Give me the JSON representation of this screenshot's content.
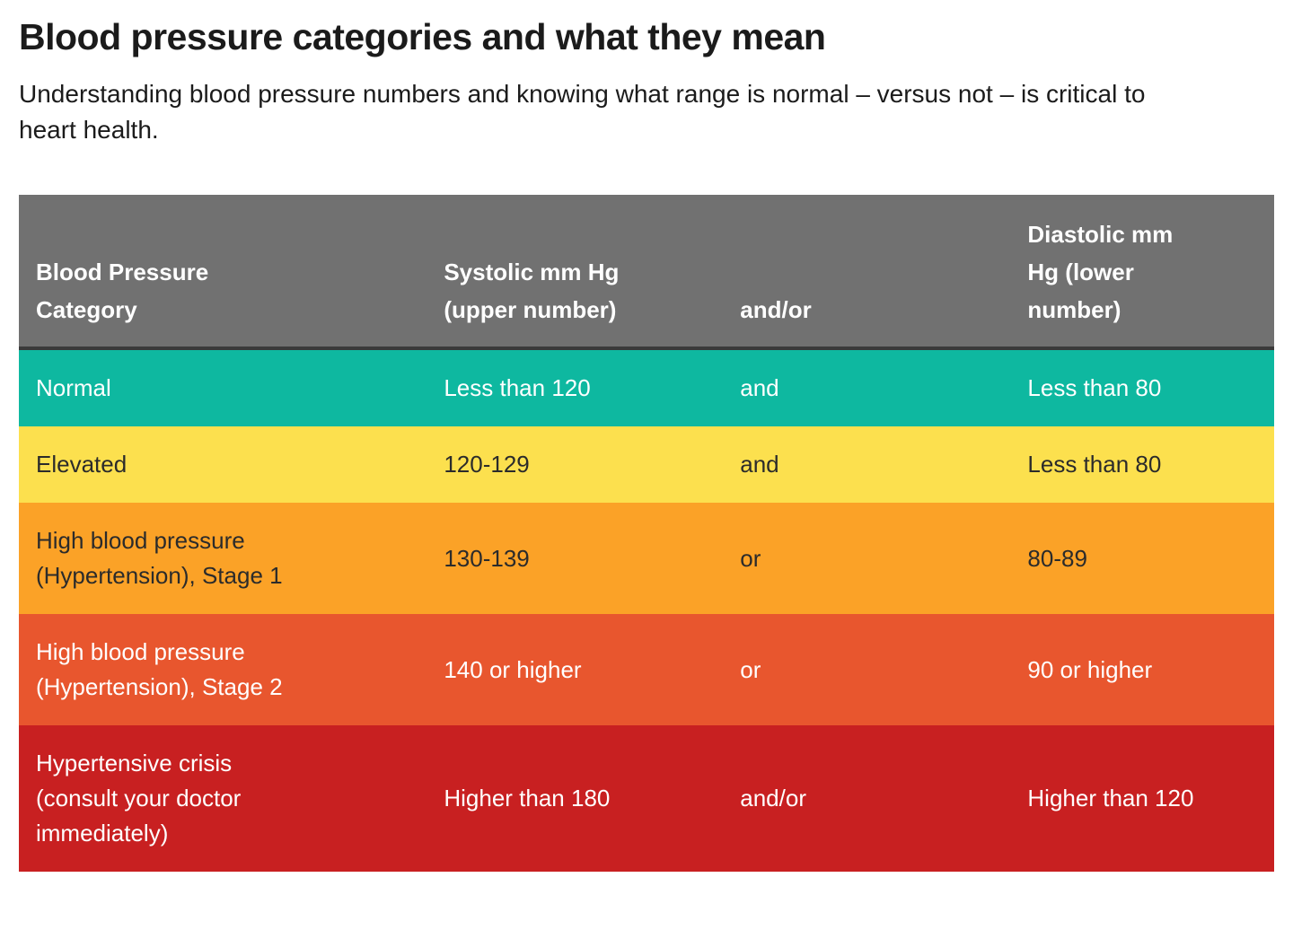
{
  "page": {
    "title": "Blood pressure categories and what they mean",
    "subtitle": "Understanding blood pressure numbers and knowing what range is normal – versus not – is critical to heart health."
  },
  "colors": {
    "page_background": "#ffffff",
    "body_text": "#1b1b1b",
    "header_background": "#717171",
    "header_text": "#ffffff",
    "header_divider": "#3a3a3a",
    "normal_teal": "#0eb8a0",
    "elevated_yellow": "#fce04e",
    "stage1_orange": "#fba227",
    "stage2_orange_red": "#e8562e",
    "crisis_red": "#c82021",
    "dark_cell_text": "#2b2b2b",
    "light_cell_text": "#ffffff"
  },
  "table": {
    "header": {
      "bg": "#717171",
      "fg": "#ffffff",
      "divider": "#3a3a3a",
      "columns": [
        {
          "label": "Blood Pressure Category",
          "lines": [
            "Blood Pressure",
            "Category"
          ]
        },
        {
          "label": "Systolic mm Hg (upper number)",
          "lines": [
            "Systolic mm Hg",
            "(upper number)"
          ]
        },
        {
          "label": "and/or",
          "lines": [
            "and/or"
          ]
        },
        {
          "label": "Diastolic mm Hg (lower number)",
          "lines": [
            "Diastolic mm",
            "Hg (lower",
            "number)"
          ]
        }
      ]
    },
    "rows": [
      {
        "category": "Normal",
        "category_lines": [
          "Normal"
        ],
        "systolic": "Less than 120",
        "connector": "and",
        "diastolic": "Less than 80",
        "bg": "#0eb8a0",
        "fg": "#ffffff"
      },
      {
        "category": "Elevated",
        "category_lines": [
          "Elevated"
        ],
        "systolic": "120-129",
        "connector": "and",
        "diastolic": "Less than 80",
        "bg": "#fce04e",
        "fg": "#2b2b2b"
      },
      {
        "category": "High blood pressure (Hypertension), Stage 1",
        "category_lines": [
          "High blood pressure",
          "(Hypertension), Stage 1"
        ],
        "systolic": "130-139",
        "connector": "or",
        "diastolic": "80-89",
        "bg": "#fba227",
        "fg": "#2b2b2b"
      },
      {
        "category": "High blood pressure (Hypertension), Stage 2",
        "category_lines": [
          "High blood pressure",
          "(Hypertension), Stage 2"
        ],
        "systolic": "140 or higher",
        "connector": "or",
        "diastolic": "90 or higher",
        "bg": "#e8562e",
        "fg": "#ffffff"
      },
      {
        "category": "Hypertensive crisis (consult your doctor immediately)",
        "category_lines": [
          "Hypertensive crisis",
          "(consult your doctor",
          "immediately)"
        ],
        "systolic": "Higher than 180",
        "connector": "and/or",
        "diastolic": "Higher than 120",
        "bg": "#c82021",
        "fg": "#ffffff"
      }
    ]
  }
}
